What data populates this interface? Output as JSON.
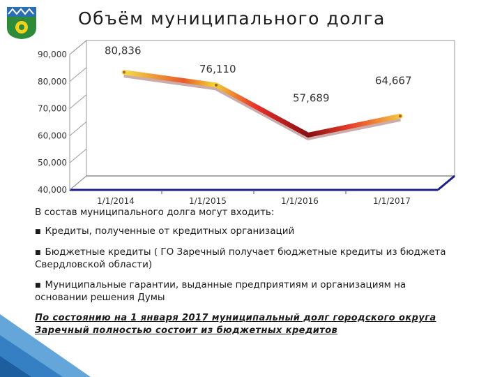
{
  "title": "Объём муниципального долга",
  "chart_data": {
    "type": "line",
    "title": "Объём муниципального долга",
    "categories": [
      "1/1/2014",
      "1/1/2015",
      "1/1/2016",
      "1/1/2017"
    ],
    "series": [
      {
        "values": [
          80836,
          76110,
          57689,
          64667
        ]
      }
    ],
    "data_labels": [
      "80,836",
      "76,110",
      "57,689",
      "64,667"
    ],
    "y_ticks": [
      "40,000",
      "50,000",
      "60,000",
      "70,000",
      "80,000",
      "90,000"
    ],
    "ylim": [
      40000,
      90000
    ],
    "xlabel": "",
    "ylabel": "",
    "grid": false,
    "legend": "none",
    "colors": {
      "line_start": "#f5e04a",
      "line_peak": "#e8302a",
      "line_low": "#8a0e12",
      "floor": "#1e1e8c"
    }
  },
  "text": {
    "intro": "В состав муниципального долга могут входить:",
    "bullets": [
      "Кредиты, полученные от кредитных организаций",
      "Бюджетные кредиты ( ГО Заречный получает бюджетные кредиты из бюджета Свердловской области)",
      "Муниципальные гарантии, выданные предприятиям и организациям на основании решения Думы"
    ],
    "conclusion": "По состоянию на 1 января 2017 муниципальный долг городского округа Заречный полностью состоит из бюджетных кредитов"
  },
  "decor": {
    "emblem_icon": "city-emblem-icon",
    "corner_accent": "#4a96d4"
  }
}
